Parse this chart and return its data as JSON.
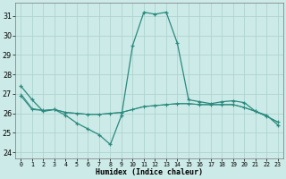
{
  "xlabel": "Humidex (Indice chaleur)",
  "x": [
    0,
    1,
    2,
    3,
    4,
    5,
    6,
    7,
    8,
    9,
    10,
    11,
    12,
    13,
    14,
    15,
    16,
    17,
    18,
    19,
    20,
    21,
    22,
    23
  ],
  "line_main": [
    27.4,
    26.7,
    26.1,
    26.2,
    25.9,
    25.5,
    25.2,
    24.9,
    24.4,
    25.9,
    29.5,
    31.2,
    31.1,
    31.2,
    29.6,
    26.7,
    26.6,
    26.5,
    26.6,
    26.65,
    26.55,
    26.1,
    25.9,
    25.4
  ],
  "line_flat1": [
    26.9,
    26.2,
    26.15,
    26.2,
    26.05,
    26.0,
    25.95,
    25.95,
    26.0,
    26.05,
    26.2,
    26.35,
    26.4,
    26.45,
    26.5,
    26.5,
    26.45,
    26.45,
    26.45,
    26.45,
    26.3,
    26.1,
    25.85,
    25.55
  ],
  "line_flat2": [
    27.0,
    26.25,
    26.15,
    26.2,
    26.05,
    26.0,
    25.95,
    25.95,
    26.0,
    26.05,
    26.2,
    26.35,
    26.4,
    26.45,
    26.5,
    26.5,
    26.45,
    26.45,
    26.45,
    26.45,
    26.3,
    26.1,
    25.85,
    25.55
  ],
  "line_color": "#2a8a7e",
  "bg_color": "#cceae7",
  "grid_color": "#aacfcc",
  "ylim": [
    23.7,
    31.7
  ],
  "yticks": [
    24,
    25,
    26,
    27,
    28,
    29,
    30,
    31
  ],
  "xlim": [
    -0.5,
    23.5
  ]
}
